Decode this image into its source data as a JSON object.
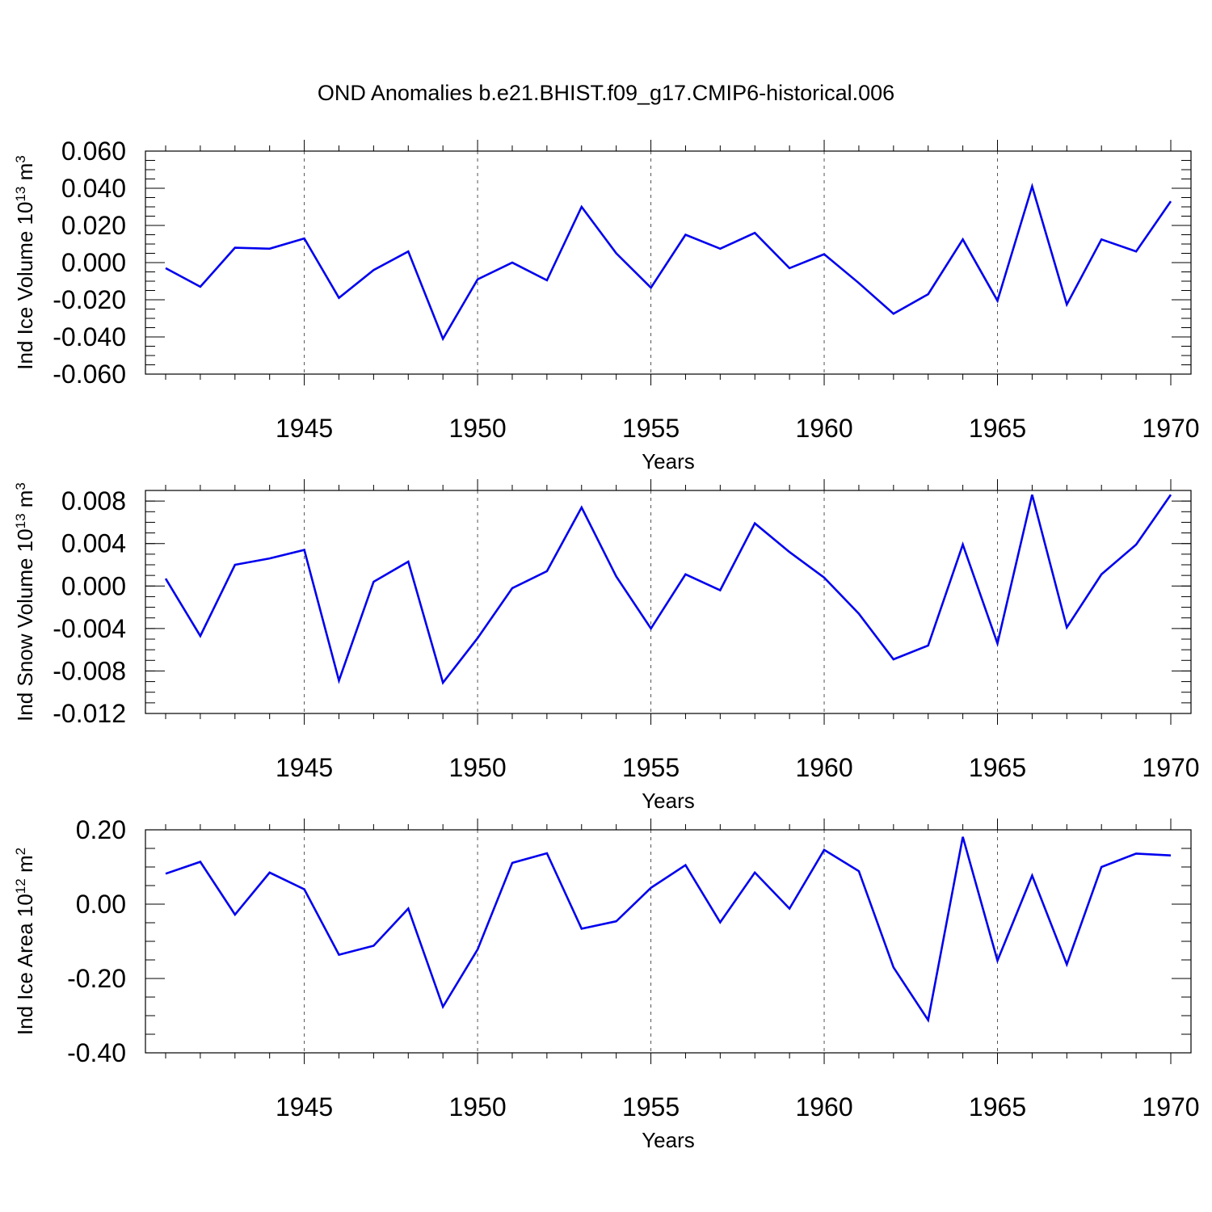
{
  "figure_title": "OND Anomalies b.e21.BHIST.f09_g17.CMIP6-historical.006",
  "line_color": "#0000ee",
  "chart_data": [
    {
      "type": "line",
      "ylabel": "Ind Ice Volume 10",
      "ylabel_exp": "13",
      "ylabel_unit": " m",
      "ylabel_unit_exp": "3",
      "xlabel": "Years",
      "xlim": [
        1941,
        1970
      ],
      "ylim": [
        -0.06,
        0.06
      ],
      "yticks": [
        -0.06,
        -0.04,
        -0.02,
        0.0,
        0.02,
        0.04,
        0.06
      ],
      "ytick_labels": [
        "-0.060",
        "-0.040",
        "-0.020",
        "0.000",
        "0.020",
        "0.040",
        "0.060"
      ],
      "yminor_step": 0.005,
      "xticks": [
        1945,
        1950,
        1955,
        1960,
        1965,
        1970
      ],
      "xtick_labels": [
        "1945",
        "1950",
        "1955",
        "1960",
        "1965",
        "1970"
      ],
      "x": [
        1941,
        1942,
        1943,
        1944,
        1945,
        1946,
        1947,
        1948,
        1949,
        1950,
        1951,
        1952,
        1953,
        1954,
        1955,
        1956,
        1957,
        1958,
        1959,
        1960,
        1961,
        1962,
        1963,
        1964,
        1965,
        1966,
        1967,
        1968,
        1969,
        1970
      ],
      "values": [
        -0.003,
        -0.013,
        0.008,
        0.0075,
        0.013,
        -0.019,
        -0.004,
        0.006,
        -0.041,
        -0.009,
        0.0,
        -0.0095,
        0.03,
        0.005,
        -0.0135,
        0.015,
        0.0075,
        0.016,
        -0.003,
        0.0045,
        -0.011,
        -0.0275,
        -0.017,
        0.0125,
        -0.0205,
        0.041,
        -0.0225,
        0.0125,
        0.006,
        0.033
      ]
    },
    {
      "type": "line",
      "ylabel": "Ind Snow Volume 10",
      "ylabel_exp": "13",
      "ylabel_unit": " m",
      "ylabel_unit_exp": "3",
      "xlabel": "Years",
      "xlim": [
        1941,
        1970
      ],
      "ylim": [
        -0.012,
        0.009
      ],
      "yticks": [
        -0.012,
        -0.008,
        -0.004,
        0.0,
        0.004,
        0.008
      ],
      "ytick_labels": [
        "-0.012",
        "-0.008",
        "-0.004",
        "0.000",
        "0.004",
        "0.008"
      ],
      "yminor_step": 0.001,
      "xticks": [
        1945,
        1950,
        1955,
        1960,
        1965,
        1970
      ],
      "xtick_labels": [
        "1945",
        "1950",
        "1955",
        "1960",
        "1965",
        "1970"
      ],
      "x": [
        1941,
        1942,
        1943,
        1944,
        1945,
        1946,
        1947,
        1948,
        1949,
        1950,
        1951,
        1952,
        1953,
        1954,
        1955,
        1956,
        1957,
        1958,
        1959,
        1960,
        1961,
        1962,
        1963,
        1964,
        1965,
        1966,
        1967,
        1968,
        1969,
        1970
      ],
      "values": [
        0.0007,
        -0.0047,
        0.002,
        0.0026,
        0.0034,
        -0.0089,
        0.0004,
        0.0023,
        -0.0091,
        -0.0049,
        -0.0002,
        0.0014,
        0.0074,
        0.0009,
        -0.004,
        0.0011,
        -0.0004,
        0.0059,
        0.0032,
        0.0008,
        -0.0026,
        -0.0069,
        -0.0056,
        0.0039,
        -0.0054,
        0.0086,
        -0.0039,
        0.0011,
        0.0039,
        0.0086
      ]
    },
    {
      "type": "line",
      "ylabel": "Ind Ice Area 10",
      "ylabel_exp": "12",
      "ylabel_unit": " m",
      "ylabel_unit_exp": "2",
      "xlabel": "Years",
      "xlim": [
        1941,
        1970
      ],
      "ylim": [
        -0.4,
        0.2
      ],
      "yticks": [
        -0.4,
        -0.2,
        0.0,
        0.2
      ],
      "ytick_labels": [
        "-0.40",
        "-0.20",
        "0.00",
        "0.20"
      ],
      "yminor_step": 0.05,
      "xticks": [
        1945,
        1950,
        1955,
        1960,
        1965,
        1970
      ],
      "xtick_labels": [
        "1945",
        "1950",
        "1955",
        "1960",
        "1965",
        "1970"
      ],
      "x": [
        1941,
        1942,
        1943,
        1944,
        1945,
        1946,
        1947,
        1948,
        1949,
        1950,
        1951,
        1952,
        1953,
        1954,
        1955,
        1956,
        1957,
        1958,
        1959,
        1960,
        1961,
        1962,
        1963,
        1964,
        1965,
        1966,
        1967,
        1968,
        1969,
        1970
      ],
      "values": [
        0.082,
        0.114,
        -0.028,
        0.085,
        0.04,
        -0.136,
        -0.112,
        -0.012,
        -0.276,
        -0.122,
        0.111,
        0.137,
        -0.066,
        -0.046,
        0.044,
        0.105,
        -0.049,
        0.085,
        -0.012,
        0.146,
        0.089,
        -0.17,
        -0.312,
        0.181,
        -0.152,
        0.077,
        -0.162,
        0.1,
        0.136,
        0.131
      ]
    }
  ]
}
